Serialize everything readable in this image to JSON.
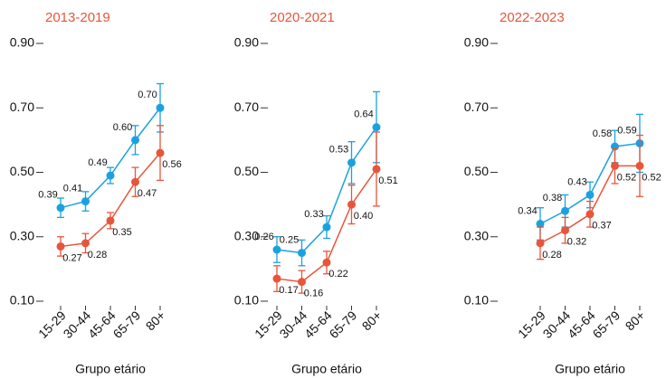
{
  "chart_data": [
    {
      "type": "line",
      "title": "2013-2019",
      "x_label": "Grupo etário",
      "categories": [
        "15-29",
        "30-44",
        "45-64",
        "65-79",
        "80+"
      ],
      "ylim": [
        0.1,
        0.9
      ],
      "yticks": [
        {
          "value": 0.1,
          "label": "0.10"
        },
        {
          "value": 0.3,
          "label": "0.30"
        },
        {
          "value": 0.5,
          "label": "0.50"
        },
        {
          "value": 0.7,
          "label": "0.70"
        },
        {
          "value": 0.9,
          "label": "0.90"
        }
      ],
      "series": [
        {
          "color": "#1ba1e2",
          "values": [
            0.39,
            0.41,
            0.49,
            0.6,
            0.7
          ],
          "value_labels": [
            "0.39",
            "0.41",
            "0.49",
            "0.60",
            "0.70"
          ],
          "errors": [
            0.03,
            0.03,
            0.025,
            0.045,
            0.075
          ]
        },
        {
          "color": "#e8553a",
          "values": [
            0.27,
            0.28,
            0.35,
            0.47,
            0.56
          ],
          "value_labels": [
            "0.27",
            "0.28",
            "0.35",
            "0.47",
            "0.56"
          ],
          "errors": [
            0.03,
            0.03,
            0.025,
            0.045,
            0.085
          ]
        }
      ]
    },
    {
      "type": "line",
      "title": "2020-2021",
      "x_label": "Grupo etário",
      "categories": [
        "15-29",
        "30-44",
        "45-64",
        "65-79",
        "80+"
      ],
      "ylim": [
        0.1,
        0.9
      ],
      "yticks": [
        {
          "value": 0.1,
          "label": "0.10"
        },
        {
          "value": 0.3,
          "label": "0.30"
        },
        {
          "value": 0.5,
          "label": "0.50"
        },
        {
          "value": 0.7,
          "label": "0.70"
        },
        {
          "value": 0.9,
          "label": "0.90"
        }
      ],
      "series": [
        {
          "color": "#1ba1e2",
          "values": [
            0.26,
            0.25,
            0.33,
            0.53,
            0.64
          ],
          "value_labels": [
            "0.26",
            "0.25",
            "0.33",
            "0.53",
            "0.64"
          ],
          "errors": [
            0.04,
            0.04,
            0.035,
            0.065,
            0.11
          ]
        },
        {
          "color": "#e8553a",
          "values": [
            0.17,
            0.16,
            0.22,
            0.4,
            0.51
          ],
          "value_labels": [
            "0.17",
            "0.16",
            "0.22",
            "0.40",
            "0.51"
          ],
          "errors": [
            0.04,
            0.035,
            0.035,
            0.06,
            0.115
          ]
        }
      ]
    },
    {
      "type": "line",
      "title": "2022-2023",
      "x_label": "Grupo etário",
      "categories": [
        "15-29",
        "30-44",
        "45-64",
        "65-79",
        "80+"
      ],
      "ylim": [
        0.1,
        0.9
      ],
      "yticks": [
        {
          "value": 0.1,
          "label": "0.10"
        },
        {
          "value": 0.3,
          "label": "0.30"
        },
        {
          "value": 0.5,
          "label": "0.50"
        },
        {
          "value": 0.7,
          "label": "0.70"
        },
        {
          "value": 0.9,
          "label": "0.90"
        }
      ],
      "series": [
        {
          "color": "#1ba1e2",
          "values": [
            0.34,
            0.38,
            0.43,
            0.58,
            0.59
          ],
          "value_labels": [
            "0.34",
            "0.38",
            "0.43",
            "0.58",
            "0.59"
          ],
          "errors": [
            0.05,
            0.05,
            0.04,
            0.05,
            0.09
          ]
        },
        {
          "color": "#e8553a",
          "values": [
            0.28,
            0.32,
            0.37,
            0.52,
            0.52
          ],
          "value_labels": [
            "0.28",
            "0.32",
            "0.37",
            "0.52",
            "0.52"
          ],
          "errors": [
            0.05,
            0.04,
            0.04,
            0.055,
            0.095
          ]
        }
      ]
    }
  ]
}
